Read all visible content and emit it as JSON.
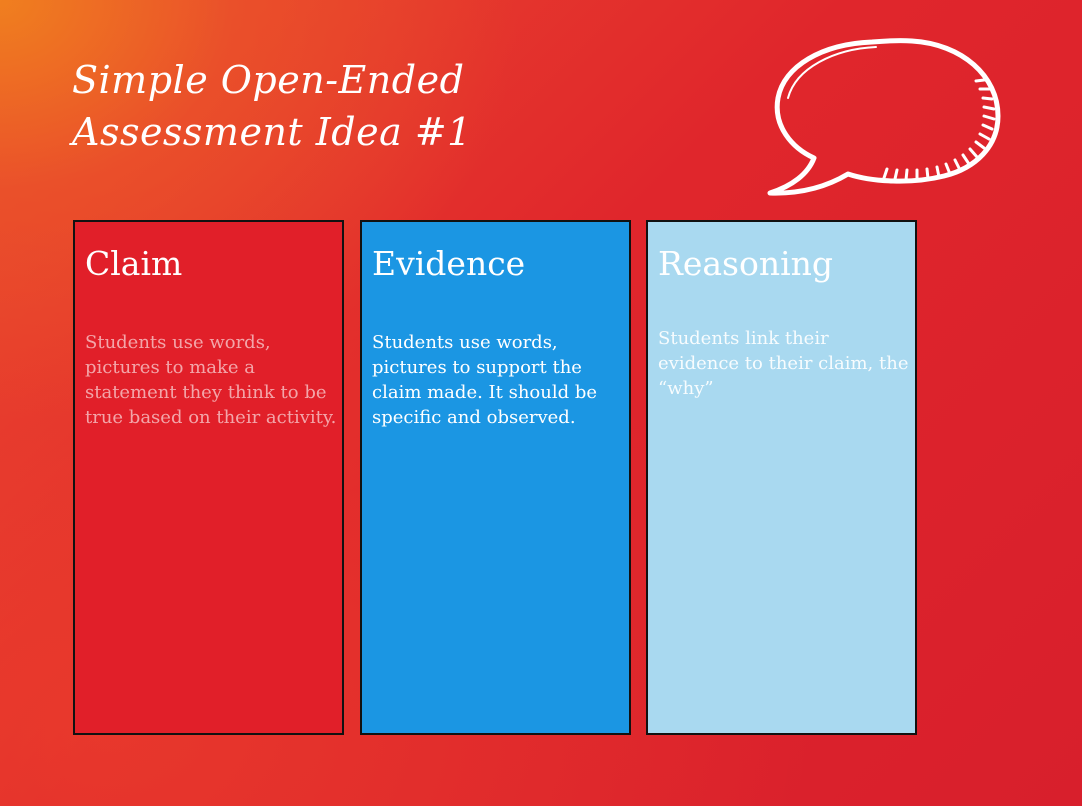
{
  "title": {
    "line1": "Simple Open-Ended",
    "line2": "Assessment Idea #1"
  },
  "icon": "speech-bubble-icon",
  "colors": {
    "claim": "#e11f29",
    "evidence": "#1b96e3",
    "reasoning": "#a9d9f0",
    "text": "#ffffff"
  },
  "columns": [
    {
      "heading": "Claim",
      "text": "Students use words, pictures to make a statement they think to be true based on their activity."
    },
    {
      "heading": "Evidence",
      "text": "Students use words, pictures to support the claim made. It should be specific and observed."
    },
    {
      "heading": "Reasoning",
      "text": "Students link their evidence to their claim, the “why”"
    }
  ]
}
